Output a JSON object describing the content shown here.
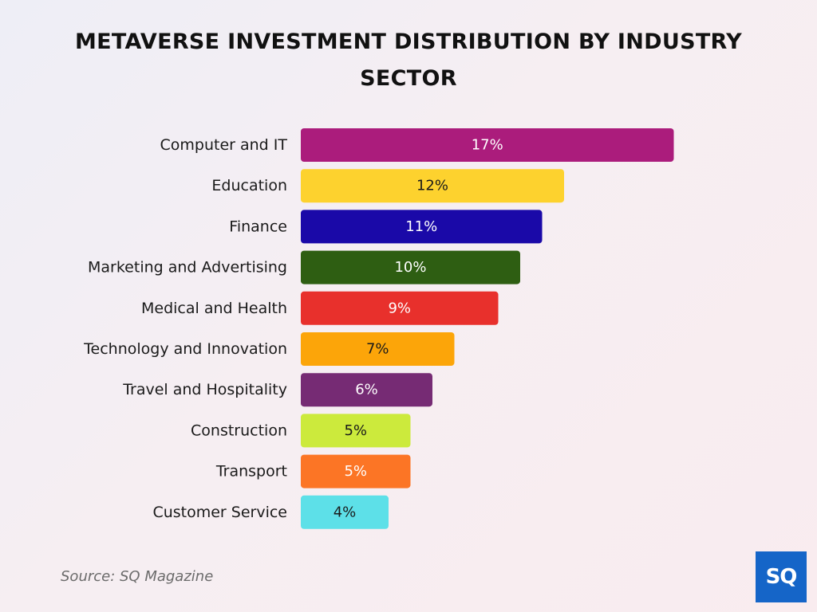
{
  "chart_data": {
    "type": "bar",
    "orientation": "horizontal",
    "title": "METAVERSE INVESTMENT DISTRIBUTION BY INDUSTRY SECTOR",
    "categories": [
      "Computer and IT",
      "Education",
      "Finance",
      "Marketing and Advertising",
      "Medical and Health",
      "Technology and Innovation",
      "Travel and Hospitality",
      "Construction",
      "Transport",
      "Customer Service"
    ],
    "values": [
      17,
      12,
      11,
      10,
      9,
      7,
      6,
      5,
      5,
      4
    ],
    "value_labels": [
      "17%",
      "12%",
      "11%",
      "10%",
      "9%",
      "7%",
      "6%",
      "5%",
      "5%",
      "4%"
    ],
    "colors": [
      "#ab1c7c",
      "#fdd22e",
      "#1a09a8",
      "#2e5e12",
      "#e8302c",
      "#fca509",
      "#762b74",
      "#ccea3c",
      "#fc7525",
      "#5de0e8"
    ],
    "label_colors": [
      "#ffffff",
      "#1a1a1a",
      "#ffffff",
      "#ffffff",
      "#ffffff",
      "#1a1a1a",
      "#ffffff",
      "#1a1a1a",
      "#ffffff",
      "#1a1a1a"
    ],
    "unit": "%",
    "grid": false,
    "legend": "none"
  },
  "source": "Source: SQ Magazine",
  "logo": {
    "text": "SQ",
    "color": "#1565c8"
  }
}
